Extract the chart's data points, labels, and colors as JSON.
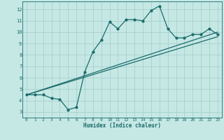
{
  "xlabel": "Humidex (Indice chaleur)",
  "background_color": "#c5e8e5",
  "grid_color": "#a8d0ce",
  "line_color": "#1a6b6b",
  "xlim": [
    -0.5,
    23.5
  ],
  "ylim": [
    2.5,
    12.7
  ],
  "xticks": [
    0,
    1,
    2,
    3,
    4,
    5,
    6,
    7,
    8,
    9,
    10,
    11,
    12,
    13,
    14,
    15,
    16,
    17,
    18,
    19,
    20,
    21,
    22,
    23
  ],
  "yticks": [
    3,
    4,
    5,
    6,
    7,
    8,
    9,
    10,
    11,
    12
  ],
  "series1_x": [
    0,
    1,
    2,
    3,
    4,
    5,
    6,
    7,
    8,
    9,
    10,
    11,
    12,
    13,
    14,
    15,
    16,
    17,
    18,
    19,
    20,
    21,
    22,
    23
  ],
  "series1_y": [
    4.5,
    4.5,
    4.5,
    4.2,
    4.1,
    3.2,
    3.4,
    6.5,
    8.3,
    9.3,
    10.9,
    10.3,
    11.1,
    11.1,
    11.0,
    11.9,
    12.3,
    10.3,
    9.5,
    9.5,
    9.8,
    9.8,
    10.3,
    9.8
  ],
  "series2_x": [
    0,
    23
  ],
  "series2_y": [
    4.5,
    9.6
  ],
  "series3_x": [
    0,
    23
  ],
  "series3_y": [
    4.5,
    10.0
  ]
}
